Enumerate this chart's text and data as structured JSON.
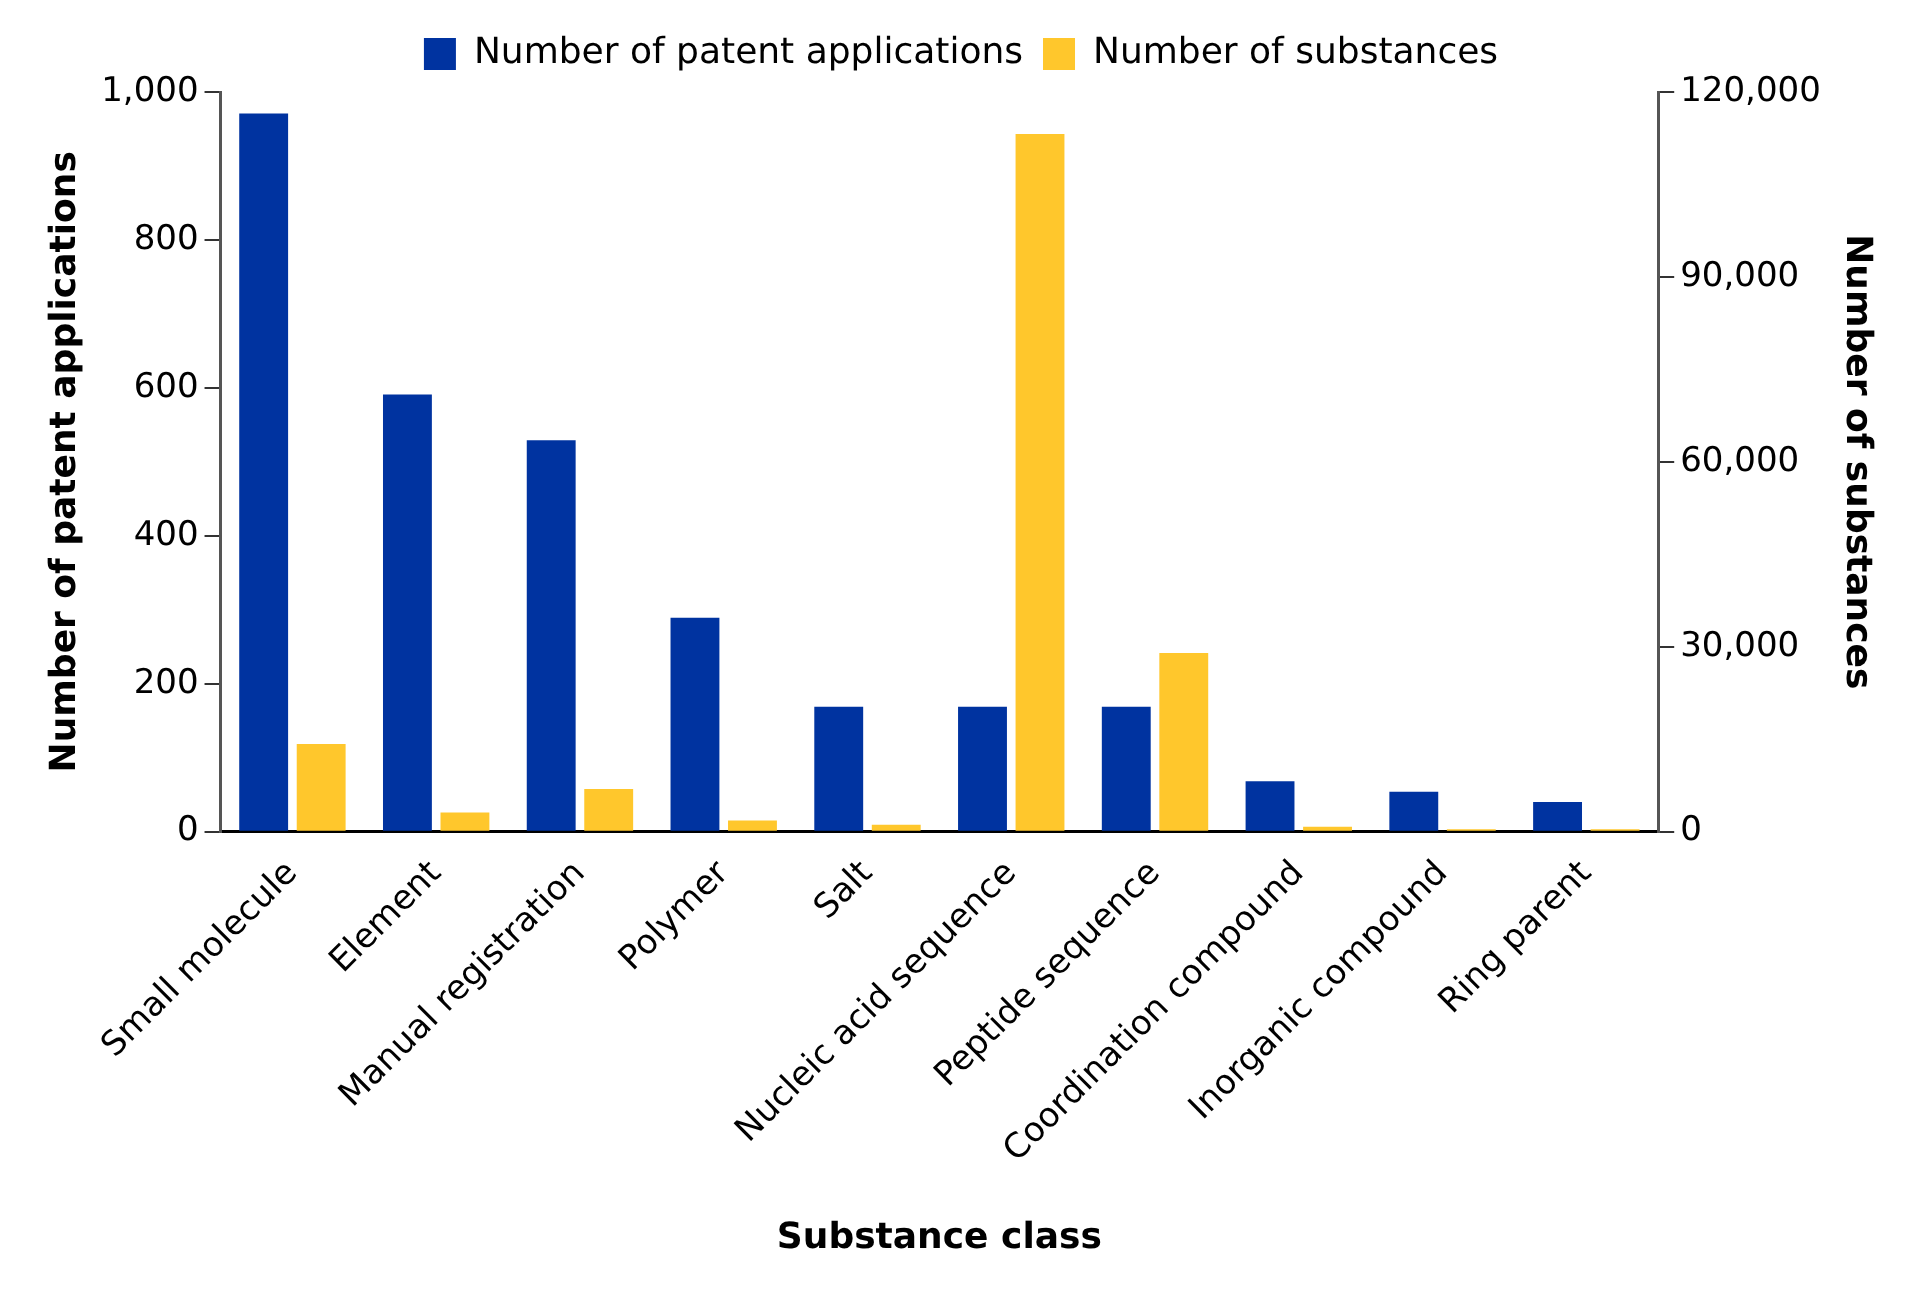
{
  "chart_data": {
    "type": "bar",
    "xlabel": "Substance class",
    "ylabel": "Number of patent applications",
    "y2label": "Number of substances",
    "categories": [
      "Small molecule",
      "Element",
      "Manual registration",
      "Polymer",
      "Salt",
      "Nucleic acid sequence",
      "Peptide sequence",
      "Coordination compound",
      "Inorganic compound",
      "Ring parent"
    ],
    "series": [
      {
        "name": "Number of patent applications",
        "color": "#0033a0",
        "values": [
          971,
          591,
          529,
          289,
          169,
          169,
          169,
          68,
          54,
          40
        ]
      },
      {
        "name": "Number of substances",
        "color": "#ffc72c",
        "axis": "y2",
        "values": [
          14200,
          3100,
          6900,
          1800,
          1100,
          113200,
          29000,
          800,
          400,
          400
        ]
      }
    ],
    "ylim": [
      0,
      1000
    ],
    "yticks": [
      0,
      200,
      400,
      600,
      800,
      {
        "value": 1000,
        "label": "1,000"
      }
    ],
    "y2lim": [
      0,
      120000
    ],
    "y2ticks": [
      0,
      {
        "value": 30000,
        "label": "30,000"
      },
      {
        "value": 60000,
        "label": "60,000"
      },
      {
        "value": 90000,
        "label": "90,000"
      },
      {
        "value": 120000,
        "label": "120,000"
      }
    ],
    "grid": false,
    "legend": "top"
  }
}
